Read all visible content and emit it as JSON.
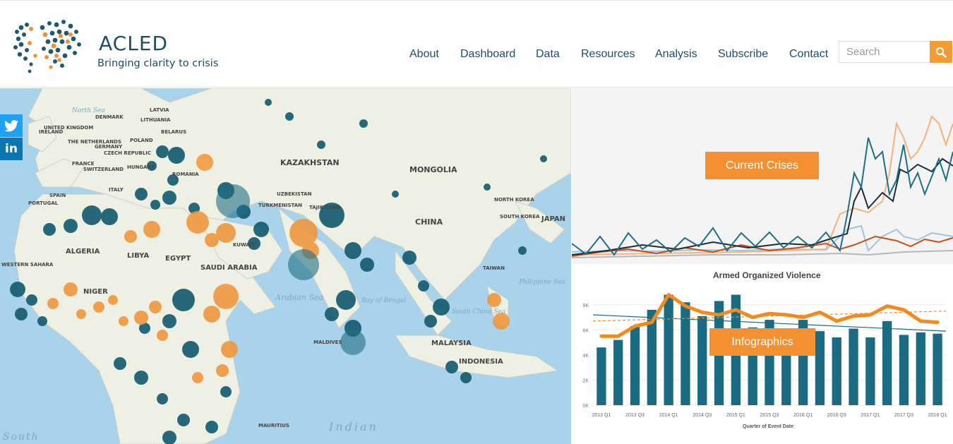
{
  "brand": {
    "name": "ACLED",
    "tagline": "Bringing clarity to crisis"
  },
  "nav": {
    "items": [
      {
        "label": "About"
      },
      {
        "label": "Dashboard"
      },
      {
        "label": "Data"
      },
      {
        "label": "Resources"
      },
      {
        "label": "Analysis"
      },
      {
        "label": "Subscribe"
      },
      {
        "label": "Contact"
      }
    ]
  },
  "search": {
    "placeholder": "Search",
    "icon": "search-icon"
  },
  "social": {
    "twitter_icon": "twitter-icon",
    "linkedin_icon": "linkedin-icon"
  },
  "colors": {
    "brand_dark": "#1d4e63",
    "accent": "#f39132",
    "teal_dot": "#155e73",
    "orange_dot": "#f0963a"
  },
  "map": {
    "countries": [
      "KAZAKHSTAN",
      "MONGOLIA",
      "CHINA",
      "NORTH KOREA",
      "SOUTH KOREA",
      "JAPAN",
      "TAIWAN",
      "MALAYSIA",
      "INDONESIA",
      "SAUDI ARABIA",
      "ALGERIA",
      "LIBYA",
      "EGYPT",
      "NIGER",
      "SPAIN",
      "PORTUGAL",
      "FRANCE",
      "SWITZERLAND",
      "IRELAND",
      "UNITED KINGDOM",
      "DENMARK",
      "LATVIA",
      "LITHUANIA",
      "BELARUS",
      "POLAND",
      "GERMANY",
      "THE NETHERLANDS",
      "CZECH REPUBLIC",
      "HUNGARY",
      "ITALY",
      "UZBEKISTAN",
      "TURKMENISTAN",
      "TAJIKISTAN",
      "MALDIVES",
      "MAURITIUS",
      "WESTERN SAHARA",
      "ROMANIA",
      "KUWAIT"
    ],
    "seas": [
      "North Sea",
      "Arabian Sea",
      "Bay of Bengal",
      "South China Sea",
      "Philippine Sea",
      "Indian",
      "South"
    ]
  },
  "crises": {
    "button_label": "Current Crises"
  },
  "infographic": {
    "button_label": "Infographics",
    "chart_title": "Armed Organized Violence",
    "x_axis_label": "Quarter of Event Date"
  },
  "chart_data": {
    "type": "bar",
    "title": "Armed Organized Violence",
    "xlabel": "Quarter of Event Date",
    "ylabel": "",
    "ylim": [
      0,
      9000
    ],
    "yticks": [
      "0K",
      "2K",
      "4K",
      "6K",
      "8K"
    ],
    "tick_labels": [
      "2013 Q1",
      "2013 Q3",
      "2014 Q1",
      "2014 Q3",
      "2015 Q1",
      "2015 Q3",
      "2016 Q1",
      "2016 Q3",
      "2017 Q1",
      "2017 Q3",
      "2018 Q1"
    ],
    "categories": [
      "2013 Q1",
      "2013 Q2",
      "2013 Q3",
      "2013 Q4",
      "2014 Q1",
      "2014 Q2",
      "2014 Q3",
      "2014 Q4",
      "2015 Q1",
      "2015 Q2",
      "2015 Q3",
      "2015 Q4",
      "2016 Q1",
      "2016 Q2",
      "2016 Q3",
      "2016 Q4",
      "2017 Q1",
      "2017 Q2",
      "2017 Q3",
      "2017 Q4",
      "2018 Q1"
    ],
    "series": [
      {
        "type": "bar",
        "color": "#1b6b82",
        "values": [
          4600,
          5200,
          6300,
          7600,
          8800,
          8200,
          7100,
          8300,
          8800,
          6200,
          6800,
          5700,
          6800,
          5900,
          5400,
          6100,
          5400,
          6700,
          5600,
          5800,
          5700
        ]
      },
      {
        "type": "line",
        "color": "#f28a21",
        "values": [
          5500,
          5500,
          6300,
          6600,
          8800,
          7900,
          7400,
          7200,
          7600,
          7000,
          7300,
          7200,
          7000,
          7400,
          6700,
          7100,
          7200,
          7900,
          7600,
          6700,
          6600
        ]
      }
    ],
    "trend_lines": [
      {
        "color": "#1b6b82",
        "start": 7200,
        "end": 5900
      },
      {
        "color": "#f28a21",
        "style": "dashed",
        "start": 6700,
        "end": 7500
      }
    ]
  }
}
